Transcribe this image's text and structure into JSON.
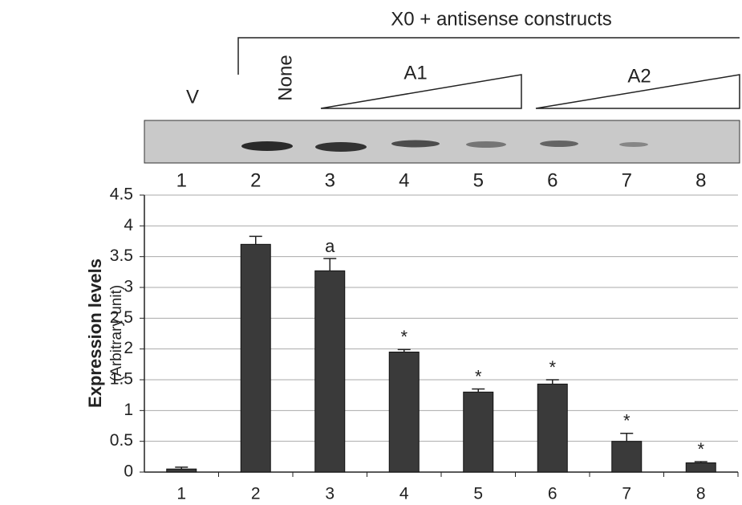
{
  "chart_data": {
    "type": "bar",
    "header": "X0 + antisense constructs",
    "lane_groups": {
      "vector": "V",
      "none": "None",
      "a1": "A1",
      "a2": "A2"
    },
    "ylabel": "Expression levels",
    "ylabel_sub": "(Arbitrary unit)",
    "categories": [
      "1",
      "2",
      "3",
      "4",
      "5",
      "6",
      "7",
      "8"
    ],
    "values": [
      0.05,
      3.7,
      3.27,
      1.95,
      1.3,
      1.43,
      0.5,
      0.15
    ],
    "errors": [
      0.03,
      0.13,
      0.2,
      0.04,
      0.05,
      0.07,
      0.13,
      0.02
    ],
    "annotations": [
      null,
      null,
      "a",
      "*",
      "*",
      "*",
      "*",
      "*"
    ],
    "color": "#3a3a3a",
    "ylim": [
      0,
      4.5
    ],
    "yticks": [
      0,
      0.5,
      1,
      1.5,
      2,
      2.5,
      3,
      3.5,
      4,
      4.5
    ],
    "grid": true
  }
}
